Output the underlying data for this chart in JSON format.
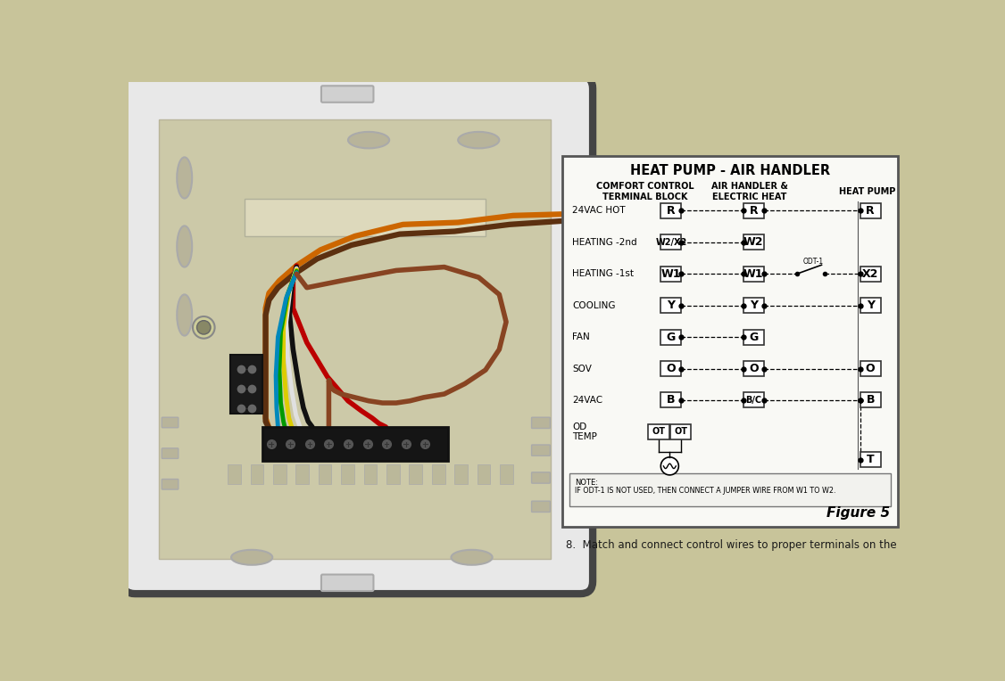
{
  "bg_color": "#c8c49a",
  "title": "HEAT PUMP - AIR HANDLER",
  "col1_header_line1": "COMFORT CONTROL",
  "col1_header_line2": "TERMINAL BLOCK",
  "col2_header_line1": "AIR HANDLER &",
  "col2_header_line2": "ELECTRIC HEAT",
  "col3_header": "HEAT PUMP",
  "rows": [
    {
      "label": "24VAC HOT",
      "t1": "R",
      "t2": "R",
      "t3": "R",
      "c12": true,
      "c23": true,
      "odt": false
    },
    {
      "label": "HEATING -2nd",
      "t1": "W2/X2",
      "t2": "W2",
      "t3": null,
      "c12": true,
      "c23": false,
      "odt": false
    },
    {
      "label": "HEATING -1st",
      "t1": "W1",
      "t2": "W1",
      "t3": "X2",
      "c12": true,
      "c23": true,
      "odt": true
    },
    {
      "label": "COOLING",
      "t1": "Y",
      "t2": "Y",
      "t3": "Y",
      "c12": true,
      "c23": true,
      "odt": false
    },
    {
      "label": "FAN",
      "t1": "G",
      "t2": "G",
      "t3": null,
      "c12": true,
      "c23": false,
      "odt": false
    },
    {
      "label": "SOV",
      "t1": "O",
      "t2": "O",
      "t3": "O",
      "c12": true,
      "c23": true,
      "odt": false
    },
    {
      "label": "24VAC",
      "t1": "B",
      "t2": "B/C",
      "t3": "B",
      "c12": true,
      "c23": true,
      "odt": false
    },
    {
      "label": "OD\nTEMP",
      "t1": "OT",
      "t2": "OT",
      "t3": null,
      "c12": false,
      "c23": false,
      "odt": false,
      "therm": true
    }
  ],
  "heat_pump_T": "T",
  "note_text1": "NOTE:",
  "note_text2": "IF ODT-1 IS NOT USED, THEN CONNECT A JUMPER WIRE FROM W1 TO W2.",
  "figure_label": "Figure 5",
  "caption": "8.  Match and connect control wires to proper terminals on the"
}
